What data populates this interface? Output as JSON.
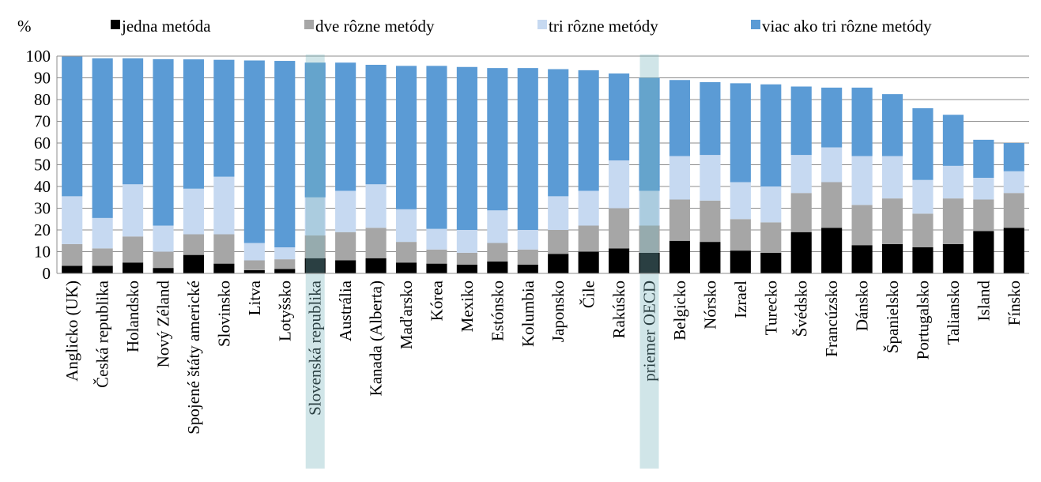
{
  "chart_data": {
    "type": "stacked_bar",
    "ylabel": "%",
    "categories": [
      "Anglicko (UK)",
      "Česká republika",
      "Holandsko",
      "Nový Zéland",
      "Spojené štáty americké",
      "Slovinsko",
      "Litva",
      "Lotyšsko",
      "Slovenská republika",
      "Austrália",
      "Kanada (Alberta)",
      "Maďarsko",
      "Kórea",
      "Mexiko",
      "Estónsko",
      "Kolumbia",
      "Japonsko",
      "Čile",
      "Rakúsko",
      "priemer OECD",
      "Belgicko",
      "Nórsko",
      "Izrael",
      "Turecko",
      "Švédsko",
      "Francúzsko",
      "Dánsko",
      "Španielsko",
      "Portugalsko",
      "Taliansko",
      "Island",
      "Fínsko"
    ],
    "series": [
      {
        "name": "jedna metóda",
        "color": "#000000",
        "values": [
          3.5,
          3.5,
          5,
          2.5,
          8.5,
          4.5,
          1.5,
          2,
          7,
          6,
          7,
          5,
          4.5,
          4,
          5.5,
          4,
          9,
          10,
          11.5,
          9.5,
          15,
          14.5,
          10.5,
          9.5,
          19,
          21,
          13,
          13.5,
          12,
          13.5,
          19.5,
          21
        ]
      },
      {
        "name": "dve rôzne metódy",
        "color": "#a6a6a6",
        "values": [
          10,
          8,
          12,
          7.5,
          9.5,
          13.5,
          4.5,
          4.5,
          10.5,
          13,
          14,
          9.5,
          6.5,
          5.5,
          8.5,
          7,
          11,
          12,
          18.5,
          12.5,
          19,
          19,
          14.5,
          14,
          18,
          21,
          18.5,
          21,
          15.5,
          21,
          14.5,
          16
        ]
      },
      {
        "name": "tri rôzne metódy",
        "color": "#c6d9f1",
        "values": [
          22,
          14,
          24,
          12,
          21,
          26.5,
          8,
          5.5,
          17.5,
          19,
          20,
          15,
          9.5,
          10.5,
          15,
          9,
          15.5,
          16,
          22,
          16,
          20,
          21,
          17,
          16.5,
          17.5,
          16,
          22.5,
          19.5,
          15.5,
          15,
          10,
          10
        ]
      },
      {
        "name": "viac ako tri rôzne metódy",
        "color": "#5b9bd5",
        "values": [
          64.3,
          73.5,
          58,
          76.6,
          59.5,
          53.8,
          84,
          85.8,
          62,
          59,
          55,
          66,
          75,
          75,
          65.5,
          74.5,
          58.5,
          55.5,
          40,
          52,
          35,
          33.5,
          45.5,
          47,
          31.5,
          27.5,
          31.5,
          28.5,
          33,
          23.5,
          17.5,
          13
        ]
      }
    ],
    "highlight": [
      8,
      19
    ],
    "ylim": [
      0,
      100
    ],
    "yticks": [
      0,
      10,
      20,
      30,
      40,
      50,
      60,
      70,
      80,
      90,
      100
    ],
    "grid": true,
    "legend": "top"
  }
}
